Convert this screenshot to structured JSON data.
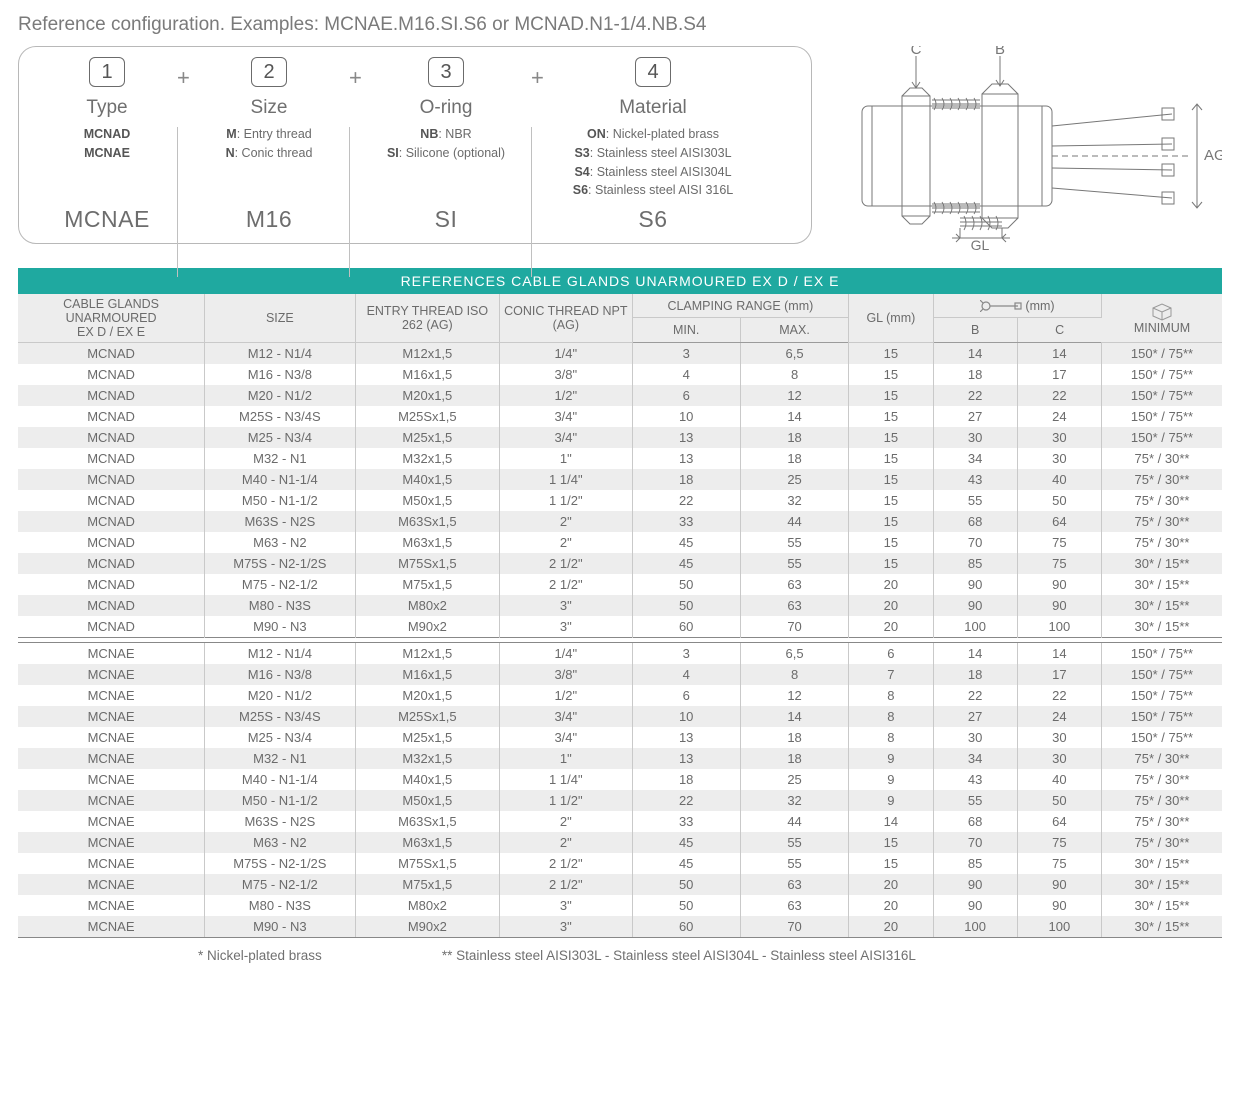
{
  "header": "Reference configuration. Examples: MCNAE.M16.SI.S6 or MCNAD.N1-1/4.NB.S4",
  "config": {
    "cols": [
      {
        "num": "1",
        "title": "Type",
        "body": "<b>MCNAD</b><br><b>MCNAE</b>",
        "example": "MCNAE"
      },
      {
        "num": "2",
        "title": "Size",
        "body": "<b>M</b>: Entry thread<br><b>N</b>: Conic thread",
        "example": "M16"
      },
      {
        "num": "3",
        "title": "O-ring",
        "body": "<b>NB</b>: NBR<br><b>SI</b>: Silicone (optional)",
        "example": "SI"
      },
      {
        "num": "4",
        "title": "Material",
        "body": "<b>ON</b>: Nickel-plated brass<br><b>S3</b>: Stainless steel AISI303L<br><b>S4</b>: Stainless steel AISI304L<br><b>S6</b>: Stainless steel AISI 316L",
        "example": "S6"
      }
    ]
  },
  "diagram_labels": {
    "c": "C",
    "b": "B",
    "ag": "AG",
    "gl": "GL"
  },
  "table": {
    "title": "REFERENCES CABLE GLANDS UNARMOURED EX D / EX E",
    "headers": {
      "ref": "CABLE GLANDS UNARMOURED\nEX D / EX E",
      "size": "SIZE",
      "entry": "ENTRY THREAD ISO 262 (AG)",
      "conic": "CONIC THREAD NPT (AG)",
      "clamp": "CLAMPING RANGE (mm)",
      "min": "MIN.",
      "max": "MAX.",
      "gl": "GL (mm)",
      "wrench": "(mm)",
      "b": "B",
      "c": "C",
      "pack": "MINIMUM"
    },
    "groups": [
      [
        [
          "MCNAD",
          "M12 - N1/4",
          "M12x1,5",
          "1/4\"",
          "3",
          "6,5",
          "15",
          "14",
          "14",
          "150* / 75**"
        ],
        [
          "MCNAD",
          "M16 - N3/8",
          "M16x1,5",
          "3/8\"",
          "4",
          "8",
          "15",
          "18",
          "17",
          "150* / 75**"
        ],
        [
          "MCNAD",
          "M20 - N1/2",
          "M20x1,5",
          "1/2\"",
          "6",
          "12",
          "15",
          "22",
          "22",
          "150* / 75**"
        ],
        [
          "MCNAD",
          "M25S - N3/4S",
          "M25Sx1,5",
          "3/4\"",
          "10",
          "14",
          "15",
          "27",
          "24",
          "150* / 75**"
        ],
        [
          "MCNAD",
          "M25 - N3/4",
          "M25x1,5",
          "3/4\"",
          "13",
          "18",
          "15",
          "30",
          "30",
          "150* / 75**"
        ],
        [
          "MCNAD",
          "M32 - N1",
          "M32x1,5",
          "1\"",
          "13",
          "18",
          "15",
          "34",
          "30",
          "75* / 30**"
        ],
        [
          "MCNAD",
          "M40 - N1-1/4",
          "M40x1,5",
          "1 1/4\"",
          "18",
          "25",
          "15",
          "43",
          "40",
          "75* / 30**"
        ],
        [
          "MCNAD",
          "M50 - N1-1/2",
          "M50x1,5",
          "1 1/2\"",
          "22",
          "32",
          "15",
          "55",
          "50",
          "75* / 30**"
        ],
        [
          "MCNAD",
          "M63S - N2S",
          "M63Sx1,5",
          "2\"",
          "33",
          "44",
          "15",
          "68",
          "64",
          "75* / 30**"
        ],
        [
          "MCNAD",
          "M63 - N2",
          "M63x1,5",
          "2\"",
          "45",
          "55",
          "15",
          "70",
          "75",
          "75* / 30**"
        ],
        [
          "MCNAD",
          "M75S - N2-1/2S",
          "M75Sx1,5",
          "2 1/2\"",
          "45",
          "55",
          "15",
          "85",
          "75",
          "30* / 15**"
        ],
        [
          "MCNAD",
          "M75 - N2-1/2",
          "M75x1,5",
          "2 1/2\"",
          "50",
          "63",
          "20",
          "90",
          "90",
          "30* / 15**"
        ],
        [
          "MCNAD",
          "M80 - N3S",
          "M80x2",
          "3\"",
          "50",
          "63",
          "20",
          "90",
          "90",
          "30* / 15**"
        ],
        [
          "MCNAD",
          "M90 - N3",
          "M90x2",
          "3\"",
          "60",
          "70",
          "20",
          "100",
          "100",
          "30* / 15**"
        ]
      ],
      [
        [
          "MCNAE",
          "M12 - N1/4",
          "M12x1,5",
          "1/4\"",
          "3",
          "6,5",
          "6",
          "14",
          "14",
          "150* / 75**"
        ],
        [
          "MCNAE",
          "M16 - N3/8",
          "M16x1,5",
          "3/8\"",
          "4",
          "8",
          "7",
          "18",
          "17",
          "150* / 75**"
        ],
        [
          "MCNAE",
          "M20 - N1/2",
          "M20x1,5",
          "1/2\"",
          "6",
          "12",
          "8",
          "22",
          "22",
          "150* / 75**"
        ],
        [
          "MCNAE",
          "M25S - N3/4S",
          "M25Sx1,5",
          "3/4\"",
          "10",
          "14",
          "8",
          "27",
          "24",
          "150* / 75**"
        ],
        [
          "MCNAE",
          "M25 - N3/4",
          "M25x1,5",
          "3/4\"",
          "13",
          "18",
          "8",
          "30",
          "30",
          "150* / 75**"
        ],
        [
          "MCNAE",
          "M32 - N1",
          "M32x1,5",
          "1\"",
          "13",
          "18",
          "9",
          "34",
          "30",
          "75* / 30**"
        ],
        [
          "MCNAE",
          "M40 - N1-1/4",
          "M40x1,5",
          "1 1/4\"",
          "18",
          "25",
          "9",
          "43",
          "40",
          "75* / 30**"
        ],
        [
          "MCNAE",
          "M50 - N1-1/2",
          "M50x1,5",
          "1 1/2\"",
          "22",
          "32",
          "9",
          "55",
          "50",
          "75* / 30**"
        ],
        [
          "MCNAE",
          "M63S - N2S",
          "M63Sx1,5",
          "2\"",
          "33",
          "44",
          "14",
          "68",
          "64",
          "75* / 30**"
        ],
        [
          "MCNAE",
          "M63 - N2",
          "M63x1,5",
          "2\"",
          "45",
          "55",
          "15",
          "70",
          "75",
          "75* / 30**"
        ],
        [
          "MCNAE",
          "M75S - N2-1/2S",
          "M75Sx1,5",
          "2 1/2\"",
          "45",
          "55",
          "15",
          "85",
          "75",
          "30* / 15**"
        ],
        [
          "MCNAE",
          "M75 - N2-1/2",
          "M75x1,5",
          "2 1/2\"",
          "50",
          "63",
          "20",
          "90",
          "90",
          "30* / 15**"
        ],
        [
          "MCNAE",
          "M80 - N3S",
          "M80x2",
          "3\"",
          "50",
          "63",
          "20",
          "90",
          "90",
          "30* / 15**"
        ],
        [
          "MCNAE",
          "M90 - N3",
          "M90x2",
          "3\"",
          "60",
          "70",
          "20",
          "100",
          "100",
          "30* / 15**"
        ]
      ]
    ]
  },
  "footnotes": {
    "a": "* Nickel-plated brass",
    "b": "** Stainless steel AISI303L - Stainless steel AISI304L - Stainless steel AISI316L"
  },
  "col_widths_pct": [
    15.5,
    12.5,
    12,
    11,
    9,
    9,
    7,
    7,
    7,
    10
  ]
}
